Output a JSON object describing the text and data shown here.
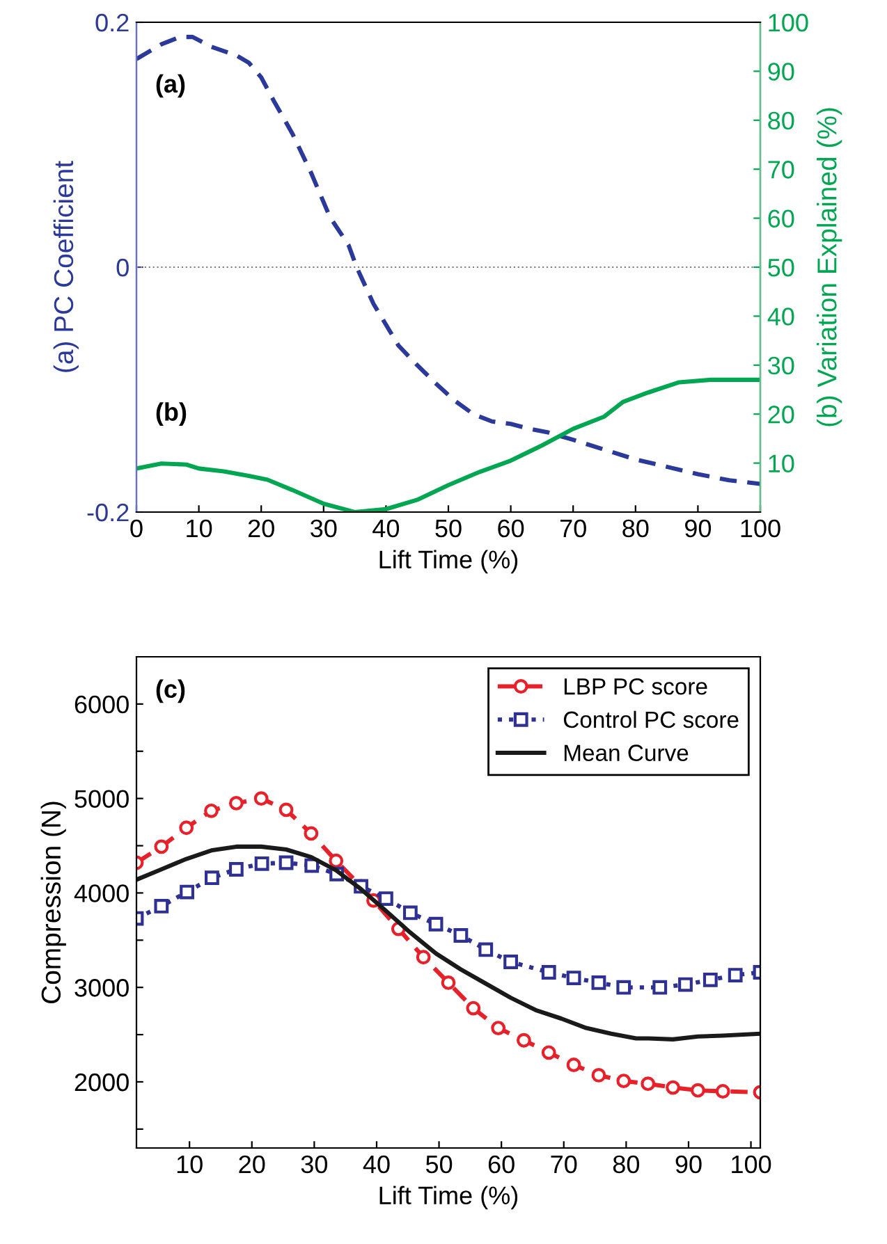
{
  "chart_data": [
    {
      "type": "line",
      "xlabel": "Lift Time (%)",
      "ylabel": "(a) PC Coefficient",
      "y2label": "(b) Variation Explained (%)",
      "xlim": [
        0,
        100
      ],
      "xticks": [
        0,
        10,
        20,
        30,
        40,
        50,
        60,
        70,
        80,
        90,
        100
      ],
      "ylim": [
        -0.2,
        0.2
      ],
      "yticks": [
        -0.2,
        0,
        0.2
      ],
      "y2lim": [
        0,
        100
      ],
      "y2ticks": [
        {
          "value": 0,
          "label": null
        },
        10,
        20,
        30,
        40,
        50,
        60,
        70,
        80,
        90,
        100
      ],
      "grid": false,
      "legend": false,
      "ref_lines": [
        {
          "axis": "y",
          "value": 0,
          "color": "#808080",
          "line_style": "dotted"
        }
      ],
      "annotations": [
        "(a)",
        "(b)"
      ],
      "series": [
        {
          "color": "#2b3a9a",
          "line_style": "dashed",
          "marker": "none",
          "x": [
            0,
            4,
            7,
            9,
            12,
            16,
            18,
            20,
            22,
            25,
            28,
            31,
            34,
            35.3,
            38,
            42,
            45,
            48,
            51,
            54,
            57,
            60,
            63,
            66,
            70,
            75,
            80,
            85,
            90,
            95,
            100
          ],
          "values": [
            0.17,
            0.182,
            0.188,
            0.188,
            0.18,
            0.173,
            0.167,
            0.155,
            0.136,
            0.109,
            0.077,
            0.041,
            0.018,
            0,
            -0.03,
            -0.064,
            -0.08,
            -0.095,
            -0.109,
            -0.12,
            -0.126,
            -0.128,
            -0.132,
            -0.135,
            -0.141,
            -0.149,
            -0.157,
            -0.163,
            -0.169,
            -0.174,
            -0.177
          ]
        },
        {
          "color": "#00a651",
          "line_style": "solid",
          "marker": "none",
          "axis": "y2",
          "x": [
            0,
            4,
            8,
            10,
            14,
            18,
            21,
            25,
            30,
            35,
            40,
            45,
            50,
            55,
            60,
            65,
            70,
            75,
            78,
            82,
            87,
            92,
            100
          ],
          "values": [
            8.9,
            9.9,
            9.7,
            8.9,
            8.3,
            7.4,
            6.6,
            4.5,
            1.7,
            0,
            0.6,
            2.5,
            5.5,
            8.2,
            10.5,
            13.6,
            17.0,
            19.5,
            22.5,
            24.4,
            26.5,
            27.0,
            27.0
          ]
        }
      ]
    },
    {
      "type": "line",
      "xlabel": "Lift Time (%)",
      "ylabel": "Compression (N)",
      "xlim": [
        1.5,
        101.5
      ],
      "xticks": [
        10,
        20,
        30,
        40,
        50,
        60,
        70,
        80,
        90,
        100
      ],
      "ylim": [
        1300,
        6500
      ],
      "yticks": [
        {
          "value": 1500,
          "label": null
        },
        2000,
        {
          "value": 2500,
          "label": null
        },
        3000,
        {
          "value": 3500,
          "label": null
        },
        4000,
        {
          "value": 4500,
          "label": null
        },
        5000,
        {
          "value": 5500,
          "label": null
        },
        6000
      ],
      "grid": false,
      "legend": "top right",
      "annotations": [
        "(c)"
      ],
      "series": [
        {
          "name": "LBP PC score",
          "color": "#e8202a",
          "line_style": "dashed",
          "marker": "circle",
          "x": [
            1.5,
            5.5,
            9.5,
            13.5,
            17.5,
            21.5,
            25.5,
            29.5,
            33.5,
            37.5,
            39.5,
            43.5,
            47.5,
            51.5,
            55.5,
            59.5,
            63.6,
            67.6,
            71.6,
            75.6,
            79.6,
            83.5,
            87.5,
            91.5,
            95.5,
            101.5
          ],
          "values": [
            4320,
            4490,
            4690,
            4870,
            4950,
            5000,
            4880,
            4630,
            4340,
            4070,
            3920,
            3620,
            3320,
            3050,
            2780,
            2570,
            2440,
            2310,
            2180,
            2070,
            2010,
            1980,
            1940,
            1910,
            1900,
            1890
          ]
        },
        {
          "name": "Control PC score",
          "color": "#2e3192",
          "line_style": "dotted",
          "marker": "square",
          "x": [
            1.5,
            5.5,
            9.6,
            13.6,
            17.5,
            21.6,
            25.5,
            29.6,
            33.6,
            37.5,
            41.5,
            45.4,
            49.5,
            53.5,
            57.5,
            61.5,
            67.6,
            71.6,
            75.6,
            79.6,
            85.4,
            89.5,
            93.5,
            97.5,
            101.5
          ],
          "values": [
            3730,
            3860,
            4010,
            4160,
            4250,
            4310,
            4320,
            4290,
            4200,
            4070,
            3940,
            3790,
            3670,
            3550,
            3400,
            3270,
            3160,
            3100,
            3050,
            3000,
            3000,
            3030,
            3080,
            3130,
            3160
          ]
        },
        {
          "name": "Mean Curve",
          "color": "#1a1a1a",
          "line_style": "solid",
          "marker": "none",
          "x": [
            1.5,
            5.5,
            9.5,
            13.5,
            17.5,
            21.5,
            25.5,
            29.5,
            33.5,
            37.5,
            41.5,
            45.4,
            49.5,
            53.5,
            57.5,
            61.5,
            65.5,
            69.6,
            73.6,
            77.6,
            81.6,
            83.6,
            87.5,
            91.5,
            95.5,
            101.5
          ],
          "values": [
            4140,
            4250,
            4360,
            4450,
            4490,
            4490,
            4460,
            4380,
            4240,
            4040,
            3810,
            3580,
            3360,
            3190,
            3040,
            2890,
            2760,
            2670,
            2570,
            2510,
            2460,
            2460,
            2450,
            2480,
            2490,
            2510
          ]
        }
      ]
    }
  ]
}
